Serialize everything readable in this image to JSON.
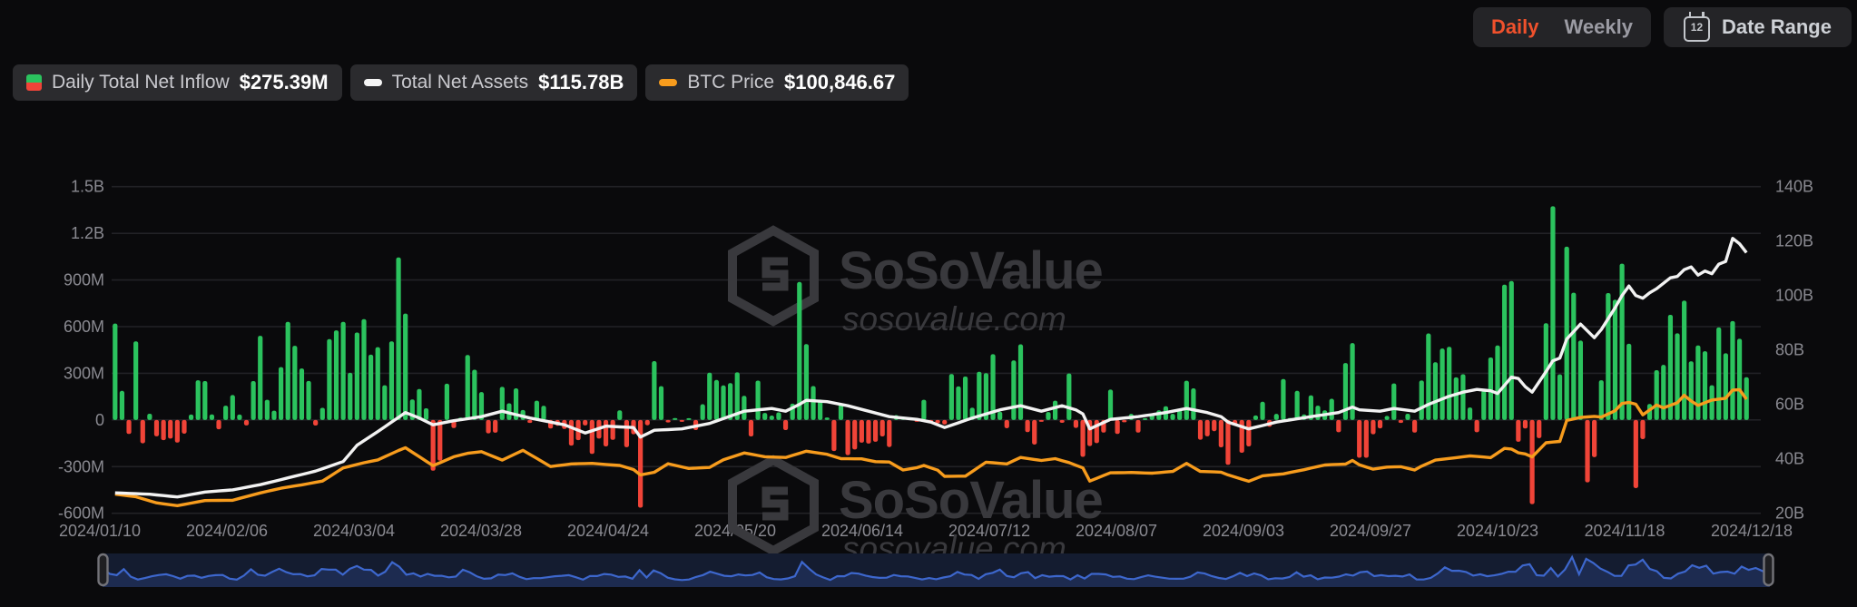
{
  "toolbar": {
    "daily_label": "Daily",
    "weekly_label": "Weekly",
    "active_tab": "Daily",
    "date_range_label": "Date Range",
    "calendar_day": "12"
  },
  "legend": {
    "items": [
      {
        "icon": "inflow-split-icon",
        "label": "Daily Total Net Inflow",
        "value": "$275.39M"
      },
      {
        "icon": "assets-dash-icon",
        "label": "Total Net Assets",
        "value": "$115.78B"
      },
      {
        "icon": "btc-dash-icon",
        "label": "BTC Price",
        "value": "$100,846.67"
      }
    ]
  },
  "watermark": {
    "brand": "SoSoValue",
    "domain": "sosovalue.com"
  },
  "colors": {
    "background": "#0a0a0c",
    "bar_positive": "#2bc35e",
    "bar_negative": "#f04438",
    "assets_line": "#f2f2f2",
    "btc_line": "#f79c1d",
    "grid": "#222226",
    "axis_text": "#8a8a91",
    "active_tab": "#f0512c",
    "navigator_fill": "#1d2b50",
    "navigator_line": "#3d67cd",
    "watermark": "#39393d"
  },
  "chart_data": {
    "type": "composite",
    "x_ticks": [
      "2024/01/10",
      "2024/02/06",
      "2024/03/04",
      "2024/03/28",
      "2024/04/24",
      "2024/05/20",
      "2024/06/14",
      "2024/07/12",
      "2024/08/07",
      "2024/09/03",
      "2024/09/27",
      "2024/10/23",
      "2024/11/18",
      "2024/12/18"
    ],
    "left_axis": {
      "ticks": [
        "1.5B",
        "1.2B",
        "900M",
        "600M",
        "300M",
        "0",
        "-300M",
        "-600M"
      ],
      "tick_values_M": [
        1500,
        1200,
        900,
        600,
        300,
        0,
        -300,
        -600
      ],
      "range_M": [
        -600,
        1500
      ]
    },
    "right_axis": {
      "ticks": [
        "140B",
        "120B",
        "100B",
        "80B",
        "60B",
        "40B",
        "20B"
      ],
      "tick_values_B": [
        140,
        120,
        100,
        80,
        60,
        40,
        20
      ],
      "range_B": [
        20,
        140
      ]
    },
    "series": [
      {
        "name": "Daily Total Net Inflow",
        "type": "bar",
        "unit": "$M",
        "values": [
          620,
          187,
          -90,
          505,
          -150,
          40,
          -105,
          -130,
          -120,
          -145,
          -88,
          35,
          255,
          250,
          36,
          -60,
          92,
          160,
          35,
          -35,
          250,
          541,
          130,
          60,
          340,
          631,
          477,
          331,
          251,
          -36,
          78,
          520,
          576,
          631,
          303,
          562,
          648,
          420,
          468,
          223,
          505,
          1045,
          684,
          132,
          199,
          75,
          -326,
          -262,
          233,
          -52,
          15,
          418,
          323,
          179,
          -86,
          -82,
          213,
          107,
          203,
          64,
          -19,
          124,
          91,
          -55,
          -37,
          -58,
          -165,
          -130,
          -35,
          -218,
          -120,
          -170,
          -128,
          62,
          -175,
          -92,
          -564,
          -34,
          378,
          217,
          -16,
          12,
          -11,
          3,
          -65,
          101,
          304,
          257,
          222,
          237,
          306,
          155,
          -106,
          253,
          45,
          28,
          49,
          -65,
          105,
          887,
          488,
          218,
          131,
          16,
          -200,
          101,
          -226,
          -190,
          -146,
          -152,
          -140,
          -106,
          -174,
          31,
          22,
          12,
          -12,
          130,
          -14,
          -21,
          -29,
          295,
          216,
          279,
          79,
          310,
          301,
          423,
          53,
          -53,
          383,
          486,
          -78,
          -158,
          -3,
          51,
          124,
          -18,
          299,
          -51,
          -237,
          -168,
          -149,
          -81,
          195,
          -90,
          -15,
          39,
          -81,
          11,
          36,
          62,
          88,
          39,
          65,
          252,
          203,
          -127,
          -105,
          -72,
          -176,
          -288,
          -37,
          -211,
          -170,
          29,
          117,
          -44,
          39,
          263,
          13,
          187,
          36,
          158,
          92,
          62,
          136,
          -79,
          366,
          494,
          -243,
          -243,
          -92,
          -54,
          26,
          235,
          -19,
          40,
          -81,
          254,
          556,
          371,
          459,
          470,
          274,
          294,
          80,
          -79,
          188,
          402,
          479,
          870,
          893,
          -140,
          -55,
          -541,
          -117,
          622,
          1374,
          293,
          1114,
          818,
          510,
          -401,
          -239,
          255,
          816,
          773,
          1005,
          490,
          -438,
          -123,
          103,
          320,
          354,
          676,
          557,
          767,
          377,
          479,
          442,
          223,
          595,
          429,
          636,
          522,
          275
        ]
      },
      {
        "name": "Total Net Assets",
        "type": "line",
        "unit": "$B",
        "anchors": [
          [
            0,
            27.5
          ],
          [
            5,
            27
          ],
          [
            9,
            26
          ],
          [
            13,
            27.8
          ],
          [
            17,
            28.6
          ],
          [
            21,
            30.5
          ],
          [
            25,
            33
          ],
          [
            29,
            35.5
          ],
          [
            33,
            39
          ],
          [
            35,
            45
          ],
          [
            38,
            50
          ],
          [
            42,
            57
          ],
          [
            44,
            55
          ],
          [
            46,
            52.5
          ],
          [
            49,
            54
          ],
          [
            53,
            55.5
          ],
          [
            56,
            57.5
          ],
          [
            60,
            55
          ],
          [
            65,
            52.5
          ],
          [
            68,
            49.5
          ],
          [
            71,
            52
          ],
          [
            75,
            51.5
          ],
          [
            76,
            48
          ],
          [
            78,
            50.5
          ],
          [
            82,
            51
          ],
          [
            86,
            53
          ],
          [
            91,
            57.5
          ],
          [
            95,
            58.5
          ],
          [
            97,
            57.5
          ],
          [
            99,
            60
          ],
          [
            100,
            61.5
          ],
          [
            103,
            61
          ],
          [
            106,
            59.5
          ],
          [
            109,
            57.5
          ],
          [
            112,
            55.5
          ],
          [
            116,
            54.5
          ],
          [
            118,
            53.5
          ],
          [
            120,
            51.5
          ],
          [
            124,
            55
          ],
          [
            128,
            58
          ],
          [
            131,
            59.5
          ],
          [
            134,
            57.5
          ],
          [
            137,
            59.5
          ],
          [
            139,
            58
          ],
          [
            140,
            56.5
          ],
          [
            141,
            51
          ],
          [
            144,
            54.5
          ],
          [
            148,
            55.5
          ],
          [
            152,
            57
          ],
          [
            155,
            58.5
          ],
          [
            158,
            57
          ],
          [
            160,
            55.5
          ],
          [
            161,
            53.5
          ],
          [
            164,
            51
          ],
          [
            168,
            53.5
          ],
          [
            173,
            55.5
          ],
          [
            177,
            57
          ],
          [
            179,
            59
          ],
          [
            180,
            58
          ],
          [
            183,
            57.5
          ],
          [
            185,
            58.5
          ],
          [
            188,
            57.5
          ],
          [
            190,
            60
          ],
          [
            193,
            63
          ],
          [
            195,
            64.5
          ],
          [
            197,
            65.5
          ],
          [
            199,
            65
          ],
          [
            200,
            64
          ],
          [
            201,
            67
          ],
          [
            202,
            70
          ],
          [
            203,
            69.5
          ],
          [
            204,
            66.5
          ],
          [
            205,
            64.5
          ],
          [
            207,
            72
          ],
          [
            208,
            76
          ],
          [
            209,
            77
          ],
          [
            210,
            84
          ],
          [
            212,
            89.5
          ],
          [
            214,
            84.5
          ],
          [
            215,
            87.5
          ],
          [
            217,
            95.5
          ],
          [
            218,
            100
          ],
          [
            219,
            103.5
          ],
          [
            220,
            100
          ],
          [
            221,
            99
          ],
          [
            222,
            101
          ],
          [
            223,
            102.5
          ],
          [
            224,
            104.5
          ],
          [
            225,
            106.5
          ],
          [
            226,
            107
          ],
          [
            227,
            109.5
          ],
          [
            228,
            110.5
          ],
          [
            229,
            107.5
          ],
          [
            230,
            109
          ],
          [
            231,
            108
          ],
          [
            232,
            111.5
          ],
          [
            233,
            112.5
          ],
          [
            234,
            121
          ],
          [
            235,
            119
          ],
          [
            236,
            115.78
          ]
        ]
      },
      {
        "name": "BTC Price",
        "type": "line",
        "unit": "$K",
        "axis": "hidden",
        "anchors": [
          [
            0,
            46.5
          ],
          [
            3,
            45
          ],
          [
            6,
            41.5
          ],
          [
            9,
            39.9
          ],
          [
            13,
            42.8
          ],
          [
            17,
            43
          ],
          [
            21,
            47.2
          ],
          [
            24,
            49.9
          ],
          [
            27,
            51.8
          ],
          [
            30,
            54
          ],
          [
            33,
            61.5
          ],
          [
            36,
            64.5
          ],
          [
            38,
            66.1
          ],
          [
            41,
            71.5
          ],
          [
            42,
            73.1
          ],
          [
            46,
            62.8
          ],
          [
            49,
            67.9
          ],
          [
            51,
            69.9
          ],
          [
            53,
            70.8
          ],
          [
            56,
            66
          ],
          [
            59,
            71.6
          ],
          [
            63,
            62.3
          ],
          [
            66,
            63.8
          ],
          [
            69,
            64.1
          ],
          [
            73,
            62.9
          ],
          [
            75,
            60.6
          ],
          [
            76,
            57.5
          ],
          [
            78,
            59
          ],
          [
            80,
            63.9
          ],
          [
            83,
            61.2
          ],
          [
            86,
            61.8
          ],
          [
            88,
            66.2
          ],
          [
            91,
            70.1
          ],
          [
            94,
            67.9
          ],
          [
            97,
            67.5
          ],
          [
            100,
            71.1
          ],
          [
            103,
            69.3
          ],
          [
            105,
            66.8
          ],
          [
            108,
            66.7
          ],
          [
            110,
            65.1
          ],
          [
            112,
            64.9
          ],
          [
            114,
            60.3
          ],
          [
            116,
            61.7
          ],
          [
            117,
            62.9
          ],
          [
            119,
            60.2
          ],
          [
            120,
            56.7
          ],
          [
            123,
            56.8
          ],
          [
            126,
            64.8
          ],
          [
            129,
            63.8
          ],
          [
            131,
            67.5
          ],
          [
            134,
            65.8
          ],
          [
            136,
            66.8
          ],
          [
            138,
            64.6
          ],
          [
            140,
            61.5
          ],
          [
            141,
            54
          ],
          [
            144,
            58.7
          ],
          [
            147,
            58.9
          ],
          [
            150,
            58.5
          ],
          [
            153,
            59.5
          ],
          [
            155,
            64.1
          ],
          [
            157,
            59.5
          ],
          [
            160,
            59.1
          ],
          [
            161,
            57.5
          ],
          [
            164,
            53.9
          ],
          [
            166,
            57
          ],
          [
            169,
            58.1
          ],
          [
            172,
            60.5
          ],
          [
            175,
            63.2
          ],
          [
            178,
            63.7
          ],
          [
            179,
            65.8
          ],
          [
            180,
            63.3
          ],
          [
            182,
            60.8
          ],
          [
            184,
            62
          ],
          [
            186,
            62.2
          ],
          [
            188,
            60.3
          ],
          [
            189,
            62.5
          ],
          [
            191,
            66
          ],
          [
            194,
            67.4
          ],
          [
            196,
            68.4
          ],
          [
            199,
            67.4
          ],
          [
            201,
            72.7
          ],
          [
            202,
            72.3
          ],
          [
            203,
            70.2
          ],
          [
            204,
            69.5
          ],
          [
            205,
            67.8
          ],
          [
            207,
            75.9
          ],
          [
            209,
            76.7
          ],
          [
            210,
            88.7
          ],
          [
            212,
            90.4
          ],
          [
            214,
            91
          ],
          [
            215,
            90.6
          ],
          [
            217,
            94.3
          ],
          [
            218,
            98.4
          ],
          [
            219,
            99
          ],
          [
            220,
            98
          ],
          [
            221,
            91.9
          ],
          [
            223,
            97.5
          ],
          [
            224,
            95.9
          ],
          [
            226,
            98.8
          ],
          [
            227,
            103.1
          ],
          [
            228,
            99.8
          ],
          [
            229,
            97.3
          ],
          [
            231,
            100.4
          ],
          [
            233,
            101.4
          ],
          [
            234,
            106.1
          ],
          [
            235,
            106.3
          ],
          [
            236,
            100.85
          ]
        ]
      }
    ]
  }
}
